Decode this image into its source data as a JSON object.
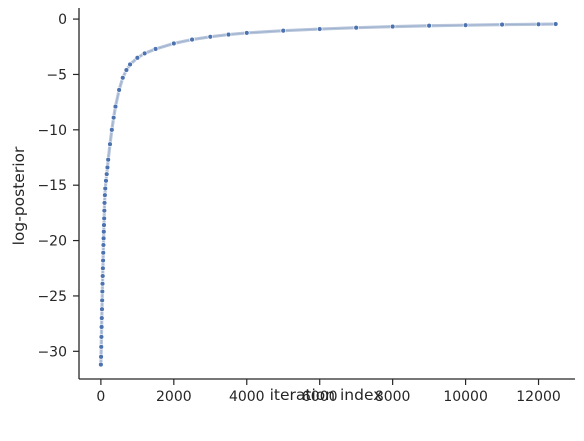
{
  "chart_data": {
    "type": "scatter",
    "title": "",
    "xlabel": "iteration index",
    "ylabel": "log-posterior",
    "xlim": [
      -600,
      13000
    ],
    "ylim": [
      -32.5,
      1.0
    ],
    "xticks": [
      0,
      2000,
      4000,
      6000,
      8000,
      10000,
      12000
    ],
    "yticks": [
      -30,
      -25,
      -20,
      -15,
      -10,
      -5,
      0
    ],
    "xtick_labels": [
      "0",
      "2000",
      "4000",
      "6000",
      "8000",
      "10000",
      "12000"
    ],
    "ytick_labels": [
      "−30",
      "−25",
      "−20",
      "−15",
      "−10",
      "−5",
      "0"
    ],
    "grid": false,
    "legend": "none",
    "colors": {
      "points": "#4c72b0",
      "trace": "#b8c6dc",
      "axes": "#262626"
    },
    "series": [
      {
        "x": [
          0,
          5,
          10,
          15,
          20,
          25,
          30,
          35,
          40,
          45,
          50,
          55,
          60,
          65,
          70,
          75,
          80,
          85,
          90,
          95,
          100,
          110,
          120,
          140,
          160,
          180,
          200,
          250,
          300,
          350,
          400,
          500,
          600,
          700,
          800,
          1000,
          1200,
          1500,
          2000,
          2500,
          3000,
          3500,
          4000,
          5000,
          6000,
          7000,
          8000,
          9000,
          10000,
          11000,
          12000,
          12470
        ],
        "y": [
          -31.2,
          -30.5,
          -29.6,
          -28.7,
          -27.8,
          -27.0,
          -26.2,
          -25.4,
          -24.6,
          -23.9,
          -23.2,
          -22.5,
          -21.8,
          -21.1,
          -20.4,
          -19.8,
          -19.2,
          -18.6,
          -18.0,
          -17.3,
          -16.6,
          -15.9,
          -15.3,
          -14.6,
          -14.0,
          -13.4,
          -12.7,
          -11.3,
          -10.0,
          -8.9,
          -7.9,
          -6.4,
          -5.3,
          -4.6,
          -4.1,
          -3.5,
          -3.1,
          -2.7,
          -2.2,
          -1.85,
          -1.6,
          -1.4,
          -1.25,
          -1.05,
          -0.9,
          -0.78,
          -0.68,
          -0.6,
          -0.55,
          -0.5,
          -0.47,
          -0.45
        ]
      }
    ]
  }
}
